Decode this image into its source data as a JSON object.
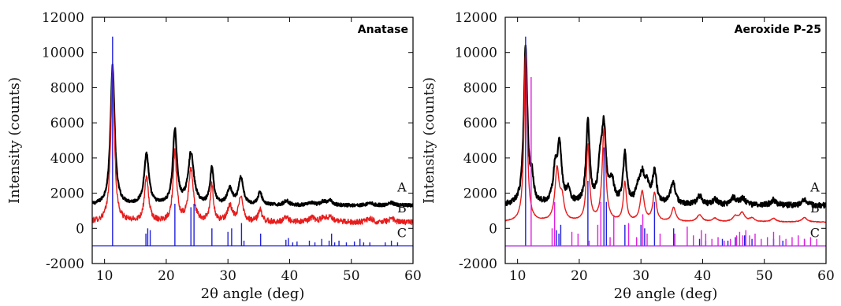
{
  "chart_data": [
    {
      "type": "line",
      "title": "Anatase",
      "xlabel": "2θ angle (deg)",
      "ylabel": "Intensity (counts)",
      "xlim": [
        8,
        60
      ],
      "ylim": [
        -2000,
        12000
      ],
      "xticks": [
        10,
        20,
        30,
        40,
        50,
        60
      ],
      "yticks": [
        -2000,
        0,
        2000,
        4000,
        6000,
        8000,
        10000,
        12000
      ],
      "grid": false,
      "series": [
        {
          "name": "A",
          "color": "#000000",
          "baseline": 1300,
          "peaks": [
            [
              11.3,
              7900,
              0.4
            ],
            [
              16.8,
              2900,
              0.45
            ],
            [
              21.4,
              4200,
              0.4
            ],
            [
              24.0,
              2900,
              0.55
            ],
            [
              27.4,
              2100,
              0.35
            ],
            [
              30.3,
              900,
              0.5
            ],
            [
              32.1,
              1500,
              0.45
            ],
            [
              35.2,
              700,
              0.4
            ],
            [
              39.5,
              250,
              0.5
            ],
            [
              43.6,
              150,
              0.5
            ],
            [
              45.5,
              200,
              0.5
            ],
            [
              46.6,
              250,
              0.5
            ],
            [
              53.0,
              150,
              0.5
            ],
            [
              56.5,
              150,
              0.5
            ]
          ],
          "noise": 90
        },
        {
          "name": "B",
          "color": "#e81c1c",
          "baseline": 350,
          "peaks": [
            [
              11.3,
              8800,
              0.35
            ],
            [
              16.8,
              2500,
              0.4
            ],
            [
              21.4,
              3900,
              0.35
            ],
            [
              24.0,
              3000,
              0.45
            ],
            [
              27.4,
              2100,
              0.3
            ],
            [
              30.3,
              900,
              0.45
            ],
            [
              32.1,
              1500,
              0.4
            ],
            [
              35.2,
              700,
              0.35
            ],
            [
              39.5,
              300,
              0.4
            ],
            [
              43.6,
              250,
              0.5
            ],
            [
              45.5,
              250,
              0.5
            ],
            [
              46.6,
              300,
              0.5
            ],
            [
              53.0,
              200,
              0.5
            ],
            [
              56.5,
              200,
              0.5
            ]
          ],
          "noise": 160
        },
        {
          "name": "C",
          "color": "#2020dd",
          "stick_base": -1000,
          "sticks": [
            [
              11.3,
              11900
            ],
            [
              16.7,
              700
            ],
            [
              17.0,
              1000
            ],
            [
              17.4,
              900
            ],
            [
              21.4,
              2400
            ],
            [
              24.0,
              2200
            ],
            [
              24.5,
              2400
            ],
            [
              27.4,
              1000
            ],
            [
              30.0,
              800
            ],
            [
              30.6,
              1000
            ],
            [
              32.2,
              1300
            ],
            [
              32.6,
              300
            ],
            [
              35.3,
              700
            ],
            [
              39.4,
              350
            ],
            [
              39.8,
              450
            ],
            [
              40.5,
              200
            ],
            [
              41.2,
              250
            ],
            [
              43.2,
              300
            ],
            [
              44.1,
              200
            ],
            [
              45.2,
              400
            ],
            [
              46.4,
              300
            ],
            [
              46.8,
              700
            ],
            [
              47.3,
              200
            ],
            [
              48.0,
              300
            ],
            [
              49.2,
              200
            ],
            [
              50.5,
              250
            ],
            [
              51.4,
              400
            ],
            [
              52.0,
              200
            ],
            [
              53.0,
              200
            ],
            [
              55.5,
              200
            ],
            [
              56.5,
              300
            ],
            [
              57.5,
              200
            ]
          ]
        }
      ],
      "series_labels": [
        {
          "text": "A",
          "x": 58.2,
          "y": 2100
        },
        {
          "text": "B",
          "x": 58.2,
          "y": 900
        },
        {
          "text": "C",
          "x": 58.2,
          "y": -500
        }
      ]
    },
    {
      "type": "line",
      "title": "Aeroxide P-25",
      "xlabel": "2θ angle (deg)",
      "ylabel": "Intensity (counts)",
      "xlim": [
        8,
        60
      ],
      "ylim": [
        -2000,
        12000
      ],
      "xticks": [
        10,
        20,
        30,
        40,
        50,
        60
      ],
      "yticks": [
        -2000,
        0,
        2000,
        4000,
        6000,
        8000,
        10000,
        12000
      ],
      "grid": false,
      "series": [
        {
          "name": "A",
          "color": "#000000",
          "baseline": 1300,
          "peaks": [
            [
              11.3,
              8900,
              0.35
            ],
            [
              12.3,
              1300,
              0.3
            ],
            [
              16.1,
              1800,
              0.4
            ],
            [
              16.8,
              3200,
              0.4
            ],
            [
              18.2,
              700,
              0.4
            ],
            [
              21.4,
              4600,
              0.35
            ],
            [
              23.4,
              2000,
              0.4
            ],
            [
              24.0,
              4100,
              0.4
            ],
            [
              25.3,
              1200,
              0.4
            ],
            [
              27.4,
              2800,
              0.35
            ],
            [
              29.5,
              700,
              0.45
            ],
            [
              30.2,
              1500,
              0.45
            ],
            [
              31.0,
              900,
              0.45
            ],
            [
              32.2,
              1800,
              0.4
            ],
            [
              35.2,
              1300,
              0.45
            ],
            [
              39.5,
              500,
              0.5
            ],
            [
              42.0,
              300,
              0.5
            ],
            [
              45.0,
              400,
              0.5
            ],
            [
              46.5,
              400,
              0.5
            ],
            [
              51.5,
              300,
              0.5
            ],
            [
              56.5,
              300,
              0.5
            ]
          ],
          "noise": 150
        },
        {
          "name": "B",
          "color": "#e81c1c",
          "baseline": 350,
          "peaks": [
            [
              11.3,
              9600,
              0.3
            ],
            [
              16.4,
              2900,
              0.4
            ],
            [
              17.2,
              1200,
              0.4
            ],
            [
              21.4,
              4300,
              0.3
            ],
            [
              24.0,
              5200,
              0.35
            ],
            [
              27.4,
              2200,
              0.3
            ],
            [
              30.2,
              1700,
              0.4
            ],
            [
              32.2,
              1600,
              0.35
            ],
            [
              35.3,
              800,
              0.4
            ],
            [
              39.5,
              400,
              0.5
            ],
            [
              42.0,
              200,
              0.5
            ],
            [
              45.3,
              300,
              0.5
            ],
            [
              46.4,
              500,
              0.5
            ],
            [
              48.0,
              200,
              0.5
            ],
            [
              51.5,
              200,
              0.5
            ],
            [
              56.5,
              250,
              0.5
            ]
          ],
          "noise": 20
        },
        {
          "name": "C",
          "color": "#2020dd",
          "stick_base": -1000,
          "sticks": [
            [
              11.3,
              11900
            ],
            [
              16.3,
              900
            ],
            [
              16.7,
              700
            ],
            [
              17.0,
              1200
            ],
            [
              21.4,
              3700
            ],
            [
              24.0,
              5600
            ],
            [
              24.4,
              2500
            ],
            [
              27.4,
              1200
            ],
            [
              30.0,
              1200
            ],
            [
              30.6,
              1000
            ],
            [
              32.2,
              2500
            ],
            [
              35.3,
              1000
            ],
            [
              39.5,
              400
            ],
            [
              40.5,
              300
            ],
            [
              43.2,
              400
            ],
            [
              44.1,
              300
            ],
            [
              45.3,
              500
            ],
            [
              46.8,
              600
            ],
            [
              48.0,
              400
            ],
            [
              51.5,
              400
            ],
            [
              53.0,
              300
            ],
            [
              56.5,
              400
            ]
          ]
        },
        {
          "name": "",
          "color": "#e020e0",
          "stick_base": -1000,
          "sticks": [
            [
              12.2,
              9600
            ],
            [
              15.6,
              1000
            ],
            [
              16.0,
              2500
            ],
            [
              18.8,
              800
            ],
            [
              19.8,
              700
            ],
            [
              21.6,
              300
            ],
            [
              23.0,
              1200
            ],
            [
              23.5,
              2500
            ],
            [
              25.0,
              500
            ],
            [
              25.6,
              1700
            ],
            [
              28.0,
              1300
            ],
            [
              29.3,
              500
            ],
            [
              30.3,
              1800
            ],
            [
              31.0,
              700
            ],
            [
              33.1,
              700
            ],
            [
              35.5,
              700
            ],
            [
              37.5,
              1100
            ],
            [
              38.5,
              600
            ],
            [
              39.8,
              900
            ],
            [
              40.5,
              700
            ],
            [
              41.5,
              400
            ],
            [
              42.5,
              500
            ],
            [
              43.5,
              300
            ],
            [
              44.5,
              400
            ],
            [
              45.5,
              600
            ],
            [
              46.0,
              800
            ],
            [
              46.5,
              600
            ],
            [
              47.0,
              900
            ],
            [
              47.6,
              600
            ],
            [
              48.5,
              700
            ],
            [
              49.5,
              400
            ],
            [
              50.5,
              500
            ],
            [
              51.5,
              800
            ],
            [
              52.5,
              600
            ],
            [
              53.5,
              400
            ],
            [
              54.5,
              500
            ],
            [
              55.5,
              600
            ],
            [
              56.5,
              400
            ],
            [
              57.5,
              500
            ],
            [
              58.5,
              400
            ]
          ]
        }
      ],
      "series_labels": [
        {
          "text": "A",
          "x": 58.2,
          "y": 2100
        },
        {
          "text": "B",
          "x": 58.2,
          "y": 900
        },
        {
          "text": "C",
          "x": 58.2,
          "y": -500
        }
      ]
    }
  ]
}
